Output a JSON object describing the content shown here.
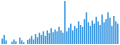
{
  "chart_data": {
    "type": "bar",
    "categories": [
      null,
      null,
      null,
      null,
      null,
      null,
      null,
      null,
      null,
      null,
      null,
      null,
      null,
      null,
      null,
      null,
      null,
      null,
      null,
      null,
      null,
      null,
      null,
      null,
      null,
      null,
      null,
      null,
      null,
      null,
      null,
      null,
      null,
      null,
      null,
      null,
      null,
      null,
      null,
      null,
      null,
      null,
      null,
      null,
      null,
      null,
      null,
      null,
      null,
      null,
      null,
      null,
      null,
      null,
      null,
      null,
      null,
      null,
      null,
      null
    ],
    "values": [
      12,
      20,
      8,
      0,
      0,
      5,
      10,
      6,
      0,
      14,
      8,
      4,
      0,
      9,
      12,
      18,
      10,
      22,
      15,
      25,
      20,
      28,
      18,
      30,
      24,
      35,
      26,
      32,
      28,
      38,
      30,
      25,
      95,
      28,
      36,
      45,
      30,
      40,
      35,
      50,
      42,
      38,
      55,
      70,
      48,
      40,
      52,
      45,
      60,
      50,
      42,
      65,
      48,
      55,
      70,
      58,
      40,
      62,
      50,
      45
    ],
    "color": "#3d9ae2",
    "ylim": [
      0,
      95
    ],
    "grid": false,
    "tick_labels": false
  }
}
